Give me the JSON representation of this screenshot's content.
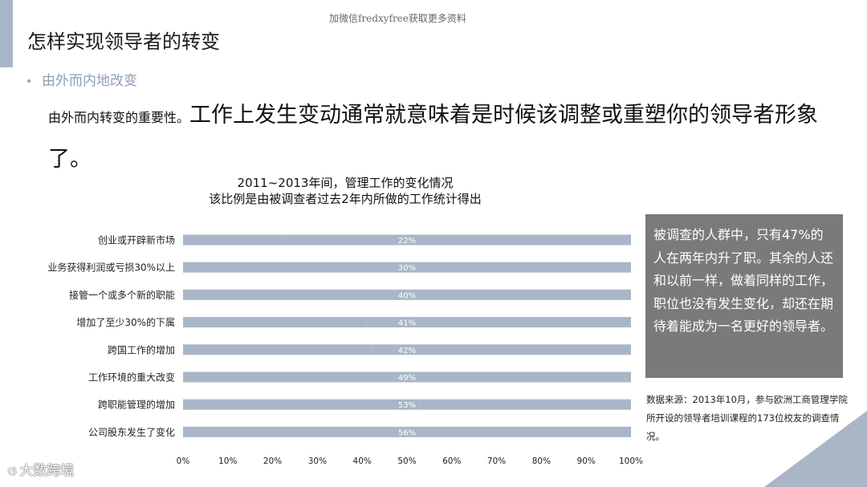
{
  "watermark": "加微信fredxyfree获取更多资料",
  "title": "怎样实现领导者的转变",
  "bullet": "由外而内地改变",
  "lead": {
    "small": "由外而内转变的重要性。",
    "big": "工作上发生变动通常就意味着是时候该调整或重塑你的领导者形象了。"
  },
  "chart_data": {
    "type": "bar",
    "orientation": "horizontal",
    "stacked": "100%",
    "title": "2011~2013年间，管理工作的变化情况",
    "subtitle": "该比例是由被调查者过去2年内所做的工作统计得出",
    "categories": [
      "创业或开辟新市场",
      "业务获得利润或亏损30%以上",
      "接管一个或多个新的职能",
      "增加了至少30%的下属",
      "跨国工作的增加",
      "工作环境的重大改变",
      "跨职能管理的增加",
      "公司股东发生了变化"
    ],
    "values": [
      22,
      30,
      40,
      41,
      42,
      49,
      53,
      56
    ],
    "data_labels": [
      "22%",
      "30%",
      "40%",
      "41%",
      "42%",
      "49%",
      "53%",
      "56%"
    ],
    "xticks": [
      "0%",
      "10%",
      "20%",
      "30%",
      "40%",
      "50%",
      "60%",
      "70%",
      "80%",
      "90%",
      "100%"
    ],
    "xlim": [
      0,
      100
    ],
    "grid": false,
    "colors": {
      "bar": "#a9b6c7",
      "bar_remainder": "#a9b6c7",
      "label": "#ffffff"
    }
  },
  "info_box": {
    "text": "被调查的人群中，只有47%的人在两年内升了职。其余的人还和以前一样，做着同样的工作，职位也没有发生变化，却还在期待着能成为一名更好的领导者。"
  },
  "source_note": "数据来源：2013年10月，参与欧洲工商管理学院所开设的领导者培训课程的173位校友的调查情况。",
  "logo": {
    "icon": "butterfly-icon",
    "text": "大数跨境"
  },
  "colors": {
    "accent": "#a9b6c7",
    "bullet": "#8d9fb6",
    "box": "#7a7a7a"
  }
}
